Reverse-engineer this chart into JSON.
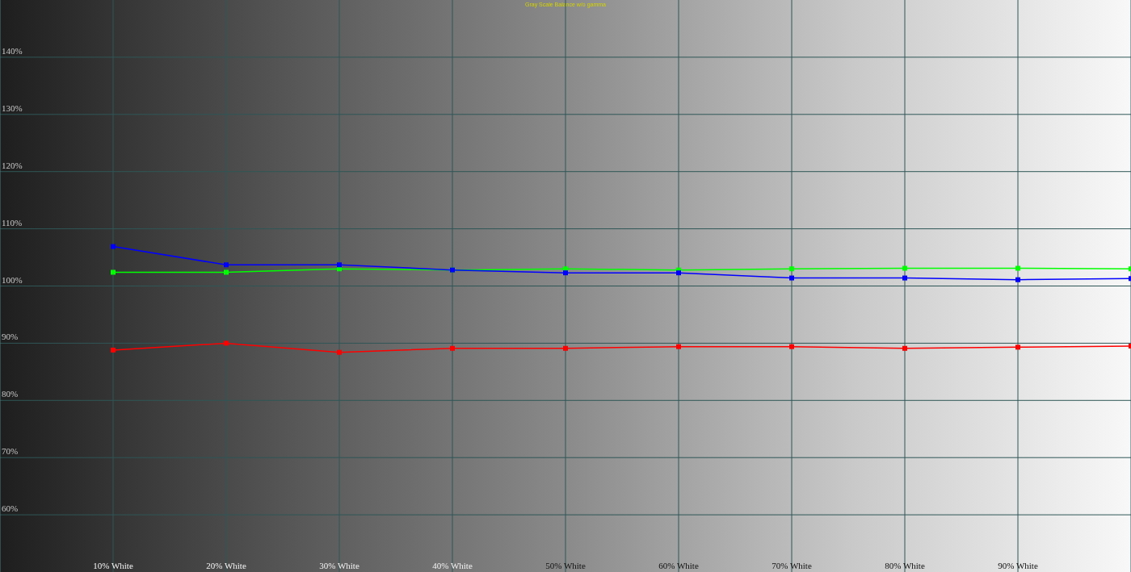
{
  "chart_data": {
    "type": "line",
    "title": "Gray Scale Balance w/o gamma",
    "categories": [
      "10% White",
      "20% White",
      "30% White",
      "40% White",
      "50% White",
      "60% White",
      "70% White",
      "80% White",
      "90% White",
      null
    ],
    "series": [
      {
        "color": "#ff0000",
        "values": [
          88.8,
          90.0,
          88.4,
          89.1,
          89.1,
          89.4,
          89.4,
          89.1,
          89.3,
          89.5
        ]
      },
      {
        "color": "#00ff00",
        "values": [
          102.4,
          102.4,
          103.0,
          102.8,
          103.0,
          102.8,
          103.0,
          103.1,
          103.1,
          103.0
        ]
      },
      {
        "color": "#0000ff",
        "values": [
          106.9,
          103.7,
          103.7,
          102.8,
          102.3,
          102.3,
          101.4,
          101.4,
          101.1,
          101.3
        ]
      }
    ],
    "ylim": [
      50,
      150
    ],
    "yticks": [
      {
        "value": 60,
        "label": "60%"
      },
      {
        "value": 70,
        "label": "70%"
      },
      {
        "value": 80,
        "label": "80%"
      },
      {
        "value": 90,
        "label": "90%"
      },
      {
        "value": 100,
        "label": "100%"
      },
      {
        "value": 110,
        "label": "110%"
      },
      {
        "value": 120,
        "label": "120%"
      },
      {
        "value": 130,
        "label": "130%"
      },
      {
        "value": 140,
        "label": "140%"
      }
    ],
    "grid": true,
    "legend": false,
    "marker": "square",
    "line_style": "solid"
  }
}
